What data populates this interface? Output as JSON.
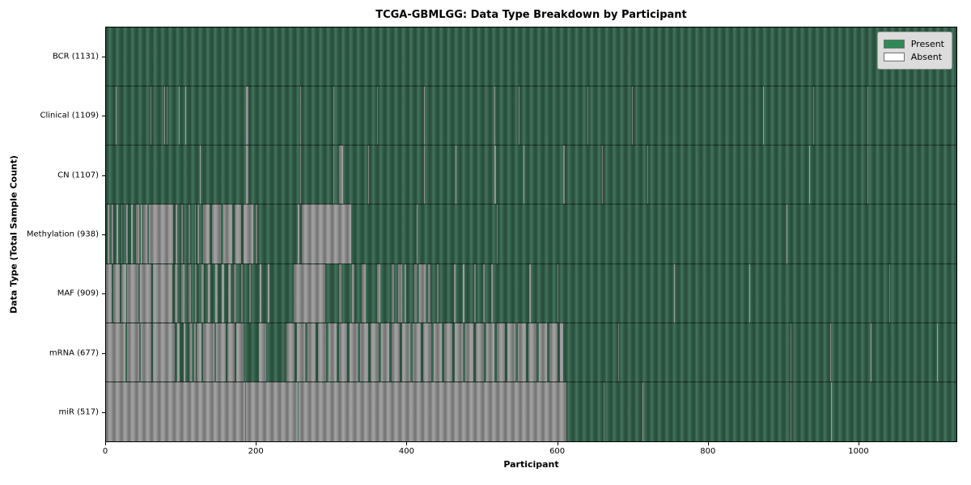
{
  "title": "TCGA-GBMLGG: Data Type Breakdown by Participant",
  "x_axis": {
    "label": "Participant",
    "tick_labels": [
      "0",
      "200",
      "400",
      "600",
      "800",
      "1000"
    ],
    "tick_values": [
      0,
      200,
      400,
      600,
      800,
      1000
    ]
  },
  "y_axis": {
    "label": "Data Type (Total Sample Count)"
  },
  "legend": {
    "present_label": "Present",
    "absent_label": "Absent",
    "present_color": "#2e8b57",
    "absent_color": "#ffffff"
  },
  "chart_data": {
    "type": "heatmap",
    "title": "TCGA-GBMLGG: Data Type Breakdown by Participant",
    "xlabel": "Participant",
    "ylabel": "Data Type (Total Sample Count)",
    "x_range": [
      0,
      1131
    ],
    "legend_position": "upper right",
    "grid": false,
    "colors": {
      "present_render": "#35654e",
      "absent_render": "#999999",
      "legend_present": "#2e8b57",
      "legend_absent": "#ffffff"
    },
    "rows": [
      {
        "name": "bcr",
        "label": "BCR (1131)",
        "data_type": "BCR",
        "total_sample_count": 1131,
        "absent_segments": []
      },
      {
        "name": "clinical",
        "label": "Clinical (1109)",
        "data_type": "Clinical",
        "total_sample_count": 1109,
        "absent_segments": [
          [
            13,
            14
          ],
          [
            59,
            60
          ],
          [
            77,
            79
          ],
          [
            81,
            82
          ],
          [
            97,
            98
          ],
          [
            105,
            106
          ],
          [
            186,
            189
          ],
          [
            258,
            259
          ],
          [
            302,
            303
          ],
          [
            360,
            361
          ],
          [
            423,
            424
          ],
          [
            516,
            518
          ],
          [
            549,
            550
          ],
          [
            640,
            641
          ],
          [
            700,
            701
          ],
          [
            874,
            875
          ],
          [
            940,
            941
          ],
          [
            1013,
            1014
          ]
        ]
      },
      {
        "name": "cn",
        "label": "CN (1107)",
        "data_type": "CN",
        "total_sample_count": 1107,
        "absent_segments": [
          [
            125,
            126
          ],
          [
            186,
            189
          ],
          [
            258,
            259
          ],
          [
            302,
            303
          ],
          [
            310,
            315
          ],
          [
            349,
            350
          ],
          [
            423,
            424
          ],
          [
            465,
            466
          ],
          [
            516,
            519
          ],
          [
            555,
            556
          ],
          [
            608,
            610
          ],
          [
            660,
            661
          ],
          [
            720,
            721
          ],
          [
            935,
            936
          ],
          [
            1013,
            1014
          ]
        ]
      },
      {
        "name": "methylation",
        "label": "Methylation (938)",
        "data_type": "Methylation",
        "total_sample_count": 938,
        "absent_segments": [
          [
            2,
            4
          ],
          [
            8,
            10
          ],
          [
            14,
            16
          ],
          [
            20,
            22
          ],
          [
            27,
            29
          ],
          [
            33,
            35
          ],
          [
            40,
            44
          ],
          [
            46,
            48
          ],
          [
            50,
            55
          ],
          [
            57,
            89
          ],
          [
            93,
            95
          ],
          [
            100,
            102
          ],
          [
            110,
            112
          ],
          [
            118,
            120
          ],
          [
            122,
            124
          ],
          [
            129,
            138
          ],
          [
            141,
            153
          ],
          [
            156,
            168
          ],
          [
            171,
            180
          ],
          [
            183,
            196
          ],
          [
            199,
            201
          ],
          [
            255,
            257
          ],
          [
            260,
            326
          ],
          [
            413,
            414
          ],
          [
            520,
            521
          ],
          [
            905,
            906
          ]
        ]
      },
      {
        "name": "maf",
        "label": "MAF (909)",
        "data_type": "MAF",
        "total_sample_count": 909,
        "absent_segments": [
          [
            0,
            8
          ],
          [
            10,
            18
          ],
          [
            20,
            27
          ],
          [
            28,
            43
          ],
          [
            45,
            60
          ],
          [
            62,
            88
          ],
          [
            92,
            95
          ],
          [
            100,
            104
          ],
          [
            110,
            113
          ],
          [
            118,
            121
          ],
          [
            127,
            130
          ],
          [
            136,
            139
          ],
          [
            145,
            148
          ],
          [
            154,
            157
          ],
          [
            163,
            166
          ],
          [
            170,
            173
          ],
          [
            180,
            182
          ],
          [
            190,
            193
          ],
          [
            205,
            207
          ],
          [
            215,
            217
          ],
          [
            250,
            292
          ],
          [
            310,
            313
          ],
          [
            327,
            330
          ],
          [
            340,
            345
          ],
          [
            360,
            365
          ],
          [
            380,
            383
          ],
          [
            388,
            394
          ],
          [
            397,
            399
          ],
          [
            410,
            413
          ],
          [
            416,
            425
          ],
          [
            428,
            432
          ],
          [
            440,
            442
          ],
          [
            463,
            465
          ],
          [
            475,
            477
          ],
          [
            490,
            492
          ],
          [
            502,
            504
          ],
          [
            512,
            514
          ],
          [
            563,
            565
          ],
          [
            600,
            601
          ],
          [
            755,
            756
          ],
          [
            856,
            857
          ],
          [
            1042,
            1043
          ]
        ]
      },
      {
        "name": "mrna",
        "label": "mRNA (677)",
        "data_type": "mRNA",
        "total_sample_count": 677,
        "absent_segments": [
          [
            0,
            26
          ],
          [
            28,
            44
          ],
          [
            46,
            60
          ],
          [
            62,
            92
          ],
          [
            95,
            98
          ],
          [
            103,
            106
          ],
          [
            111,
            114
          ],
          [
            117,
            119
          ],
          [
            120,
            127
          ],
          [
            129,
            144
          ],
          [
            146,
            159
          ],
          [
            161,
            171
          ],
          [
            173,
            183
          ],
          [
            203,
            213
          ],
          [
            240,
            251
          ],
          [
            254,
            265
          ],
          [
            268,
            279
          ],
          [
            282,
            293
          ],
          [
            296,
            307
          ],
          [
            310,
            321
          ],
          [
            324,
            335
          ],
          [
            338,
            349
          ],
          [
            352,
            363
          ],
          [
            366,
            377
          ],
          [
            380,
            391
          ],
          [
            394,
            405
          ],
          [
            408,
            419
          ],
          [
            422,
            433
          ],
          [
            436,
            447
          ],
          [
            450,
            461
          ],
          [
            464,
            475
          ],
          [
            478,
            489
          ],
          [
            492,
            503
          ],
          [
            506,
            517
          ],
          [
            520,
            531
          ],
          [
            534,
            545
          ],
          [
            548,
            559
          ],
          [
            562,
            573
          ],
          [
            576,
            587
          ],
          [
            590,
            601
          ],
          [
            604,
            608
          ],
          [
            681,
            682
          ],
          [
            910,
            911
          ],
          [
            963,
            964
          ],
          [
            1017,
            1018
          ],
          [
            1105,
            1106
          ]
        ]
      },
      {
        "name": "mir",
        "label": "miR (517)",
        "data_type": "miR",
        "total_sample_count": 517,
        "absent_segments": [
          [
            0,
            185
          ],
          [
            186,
            255
          ],
          [
            256,
            612
          ],
          [
            662,
            663
          ],
          [
            713,
            714
          ],
          [
            910,
            911
          ],
          [
            964,
            965
          ]
        ]
      }
    ]
  }
}
